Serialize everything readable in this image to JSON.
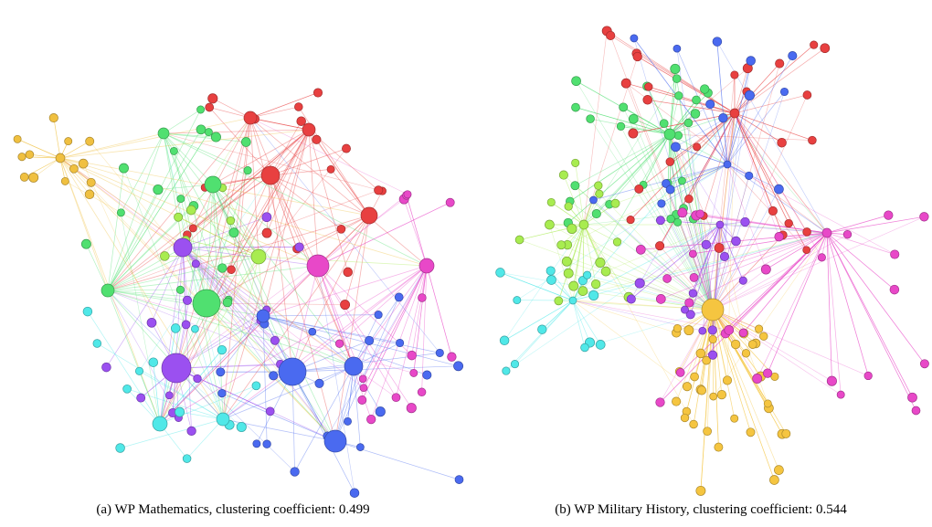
{
  "figures": [
    {
      "caption": "(a) WP Mathematics, clustering coefficient: 0.499"
    },
    {
      "caption": "(b) WP Military History, clustering coefficient: 0.544"
    }
  ]
}
